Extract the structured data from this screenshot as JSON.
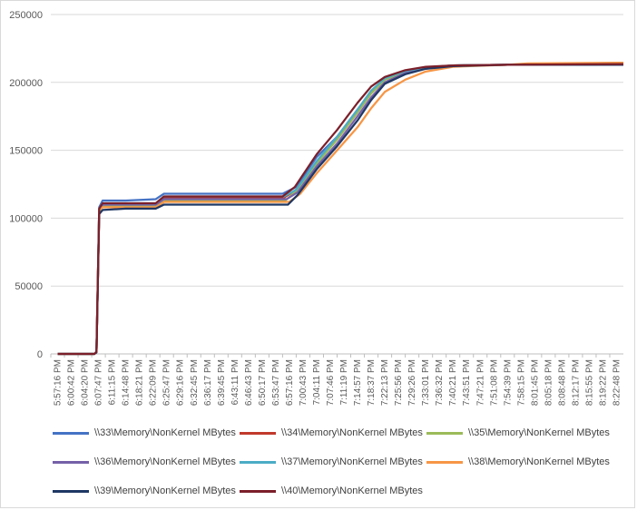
{
  "chart_data": {
    "type": "line",
    "title": "",
    "xlabel": "",
    "ylabel": "",
    "ylim": [
      0,
      250000
    ],
    "y_ticks": [
      "250000",
      "200000",
      "150000",
      "100000",
      "50000",
      "0"
    ],
    "grid": "horizontal",
    "legend_position": "bottom",
    "x_labels": [
      "5:57:16 PM",
      "6:00:42 PM",
      "6:04:20 PM",
      "6:07:47 PM",
      "6:11:15 PM",
      "6:14:48 PM",
      "6:18:21 PM",
      "6:22:09 PM",
      "6:25:47 PM",
      "6:29:16 PM",
      "6:32:45 PM",
      "6:36:17 PM",
      "6:39:45 PM",
      "6:43:11 PM",
      "6:46:43 PM",
      "6:50:17 PM",
      "6:53:47 PM",
      "6:57:16 PM",
      "7:00:43 PM",
      "7:04:11 PM",
      "7:07:46 PM",
      "7:11:19 PM",
      "7:14:57 PM",
      "7:18:37 PM",
      "7:22:13 PM",
      "7:25:56 PM",
      "7:29:26 PM",
      "7:33:01 PM",
      "7:36:32 PM",
      "7:40:21 PM",
      "7:43:51 PM",
      "7:47:21 PM",
      "7:51:08 PM",
      "7:54:39 PM",
      "7:58:15 PM",
      "8:01:45 PM",
      "8:05:18 PM",
      "8:08:48 PM",
      "8:12:17 PM",
      "8:15:55 PM",
      "8:19:22 PM",
      "8:22:48 PM"
    ],
    "series": [
      {
        "name": "\\\\33\\Memory\\NonKernel MBytes",
        "color": "#4472c4",
        "points": [
          [
            0,
            0
          ],
          [
            2.7,
            0
          ],
          [
            2.85,
            2000
          ],
          [
            3.05,
            108000
          ],
          [
            3.3,
            113000
          ],
          [
            5,
            113000
          ],
          [
            7.2,
            114000
          ],
          [
            7.8,
            118000
          ],
          [
            16.5,
            118000
          ],
          [
            17.5,
            123000
          ],
          [
            19,
            145000
          ],
          [
            20.5,
            160000
          ],
          [
            22,
            180000
          ],
          [
            23,
            193000
          ],
          [
            24,
            203000
          ],
          [
            25.5,
            208000
          ],
          [
            27,
            211000
          ],
          [
            29,
            212500
          ],
          [
            33,
            213000
          ],
          [
            41.5,
            213000
          ]
        ]
      },
      {
        "name": "\\\\34\\Memory\\NonKernel MBytes",
        "color": "#c0392b",
        "points": [
          [
            0,
            0
          ],
          [
            2.7,
            0
          ],
          [
            2.85,
            1500
          ],
          [
            3.05,
            106000
          ],
          [
            3.3,
            110000
          ],
          [
            7.2,
            110000
          ],
          [
            7.8,
            115000
          ],
          [
            16.6,
            115000
          ],
          [
            17.5,
            121000
          ],
          [
            19,
            141000
          ],
          [
            20.5,
            158000
          ],
          [
            22,
            178000
          ],
          [
            23,
            192000
          ],
          [
            24,
            202000
          ],
          [
            25.5,
            208000
          ],
          [
            27,
            211000
          ],
          [
            29,
            212500
          ],
          [
            33,
            213000
          ],
          [
            41.5,
            213500
          ]
        ]
      },
      {
        "name": "\\\\35\\Memory\\NonKernel MBytes",
        "color": "#9bbb59",
        "points": [
          [
            0,
            0
          ],
          [
            2.7,
            0
          ],
          [
            2.85,
            1500
          ],
          [
            3.05,
            105000
          ],
          [
            3.3,
            109000
          ],
          [
            7.2,
            109000
          ],
          [
            7.8,
            113000
          ],
          [
            16.7,
            113000
          ],
          [
            17.5,
            120000
          ],
          [
            19,
            140000
          ],
          [
            20.5,
            158000
          ],
          [
            22,
            178000
          ],
          [
            23,
            192000
          ],
          [
            24,
            202000
          ],
          [
            25.5,
            208000
          ],
          [
            27,
            211000
          ],
          [
            29,
            212500
          ],
          [
            33,
            213000
          ],
          [
            41.5,
            213500
          ]
        ]
      },
      {
        "name": "\\\\36\\Memory\\NonKernel MBytes",
        "color": "#7560a8",
        "points": [
          [
            0,
            0
          ],
          [
            2.7,
            0
          ],
          [
            2.85,
            1500
          ],
          [
            3.05,
            106000
          ],
          [
            3.3,
            110000
          ],
          [
            7.2,
            110000
          ],
          [
            7.8,
            114000
          ],
          [
            16.8,
            114000
          ],
          [
            17.6,
            119000
          ],
          [
            19,
            138000
          ],
          [
            20.5,
            155000
          ],
          [
            22,
            175000
          ],
          [
            23,
            189000
          ],
          [
            24,
            200000
          ],
          [
            25.5,
            207000
          ],
          [
            27,
            210500
          ],
          [
            29,
            212500
          ],
          [
            33,
            213000
          ],
          [
            41.5,
            213500
          ]
        ]
      },
      {
        "name": "\\\\37\\Memory\\NonKernel MBytes",
        "color": "#4bacc6",
        "points": [
          [
            0,
            0
          ],
          [
            2.7,
            0
          ],
          [
            2.85,
            1500
          ],
          [
            3.05,
            107000
          ],
          [
            3.3,
            111000
          ],
          [
            7.2,
            111000
          ],
          [
            7.8,
            116000
          ],
          [
            16.6,
            116000
          ],
          [
            17.5,
            121000
          ],
          [
            19,
            142000
          ],
          [
            20.5,
            160000
          ],
          [
            22,
            180000
          ],
          [
            23,
            194000
          ],
          [
            24,
            203000
          ],
          [
            25.5,
            208500
          ],
          [
            27,
            211000
          ],
          [
            29,
            212500
          ],
          [
            33,
            213000
          ],
          [
            41.5,
            214500
          ]
        ]
      },
      {
        "name": "\\\\38\\Memory\\NonKernel MBytes",
        "color": "#f79646",
        "points": [
          [
            0,
            0
          ],
          [
            2.7,
            0
          ],
          [
            2.85,
            1500
          ],
          [
            3.05,
            106000
          ],
          [
            3.3,
            108000
          ],
          [
            7.2,
            108000
          ],
          [
            7.8,
            112000
          ],
          [
            17,
            112000
          ],
          [
            17.8,
            118000
          ],
          [
            19,
            133000
          ],
          [
            20.5,
            150000
          ],
          [
            22,
            167000
          ],
          [
            23,
            181000
          ],
          [
            24,
            193000
          ],
          [
            25.5,
            202000
          ],
          [
            27,
            208000
          ],
          [
            29,
            211500
          ],
          [
            33,
            213000
          ],
          [
            34.5,
            214000
          ],
          [
            41.5,
            214500
          ]
        ]
      },
      {
        "name": "\\\\39\\Memory\\NonKernel MBytes",
        "color": "#1f3864",
        "points": [
          [
            0,
            0
          ],
          [
            2.7,
            0
          ],
          [
            2.85,
            1000
          ],
          [
            3.05,
            103000
          ],
          [
            3.3,
            106000
          ],
          [
            5,
            107000
          ],
          [
            7.2,
            107000
          ],
          [
            7.8,
            110000
          ],
          [
            16.9,
            110000
          ],
          [
            17.6,
            117000
          ],
          [
            19,
            136000
          ],
          [
            20.5,
            153000
          ],
          [
            22,
            172000
          ],
          [
            23,
            187000
          ],
          [
            24,
            199000
          ],
          [
            25.5,
            206000
          ],
          [
            27,
            210000
          ],
          [
            29,
            212000
          ],
          [
            33,
            213000
          ],
          [
            41.5,
            213000
          ]
        ]
      },
      {
        "name": "\\\\40\\Memory\\NonKernel MBytes",
        "color": "#7b1f2a",
        "points": [
          [
            0,
            0
          ],
          [
            2.7,
            0
          ],
          [
            2.85,
            1500
          ],
          [
            3.05,
            107000
          ],
          [
            3.3,
            111000
          ],
          [
            7.2,
            111000
          ],
          [
            7.8,
            116000
          ],
          [
            16.5,
            116000
          ],
          [
            17.4,
            123000
          ],
          [
            19,
            147000
          ],
          [
            20.5,
            165000
          ],
          [
            22,
            185000
          ],
          [
            23,
            197000
          ],
          [
            24,
            204000
          ],
          [
            25.5,
            209000
          ],
          [
            27,
            211500
          ],
          [
            29,
            212500
          ],
          [
            33,
            213000
          ],
          [
            41.5,
            213500
          ]
        ]
      }
    ]
  }
}
